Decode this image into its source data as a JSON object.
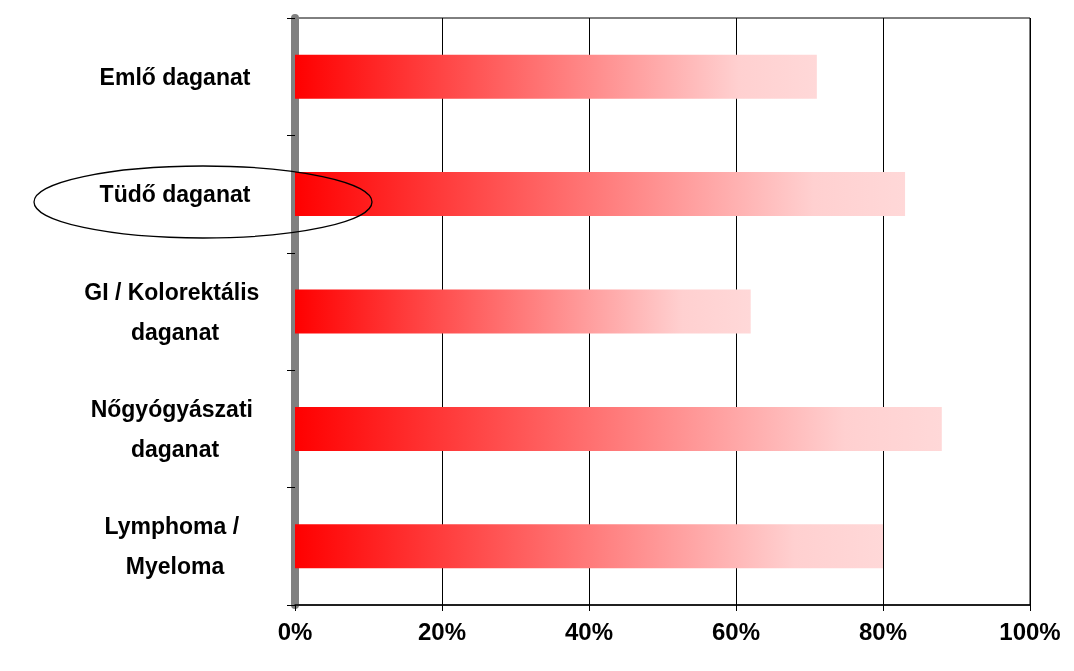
{
  "chart_data": {
    "type": "bar",
    "orientation": "horizontal",
    "categories": [
      "Emlő daganat",
      "Tüdő daganat",
      "GI / Kolorektális daganat",
      "Nőgyógyászati daganat",
      "Lymphoma / Myeloma"
    ],
    "values": [
      71,
      83,
      62,
      88,
      80
    ],
    "color": "#ff0000",
    "xlim": [
      0,
      100
    ],
    "xticks": [
      {
        "value": 0,
        "label": "0%"
      },
      {
        "value": 20,
        "label": "20%"
      },
      {
        "value": 40,
        "label": "40%"
      },
      {
        "value": 60,
        "label": "60%"
      },
      {
        "value": 80,
        "label": "80%"
      },
      {
        "value": 100,
        "label": "100%"
      }
    ],
    "grid": "x"
  }
}
